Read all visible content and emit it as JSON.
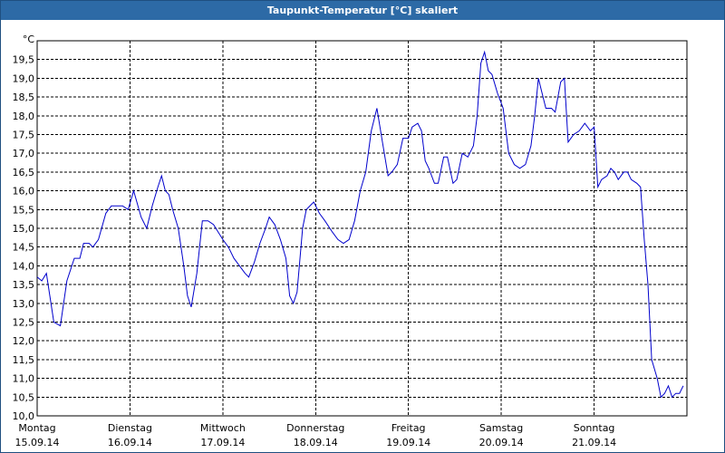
{
  "window": {
    "title": "Taupunkt-Temperatur [°C] skaliert"
  },
  "colors": {
    "line": "#0000cc",
    "grid": "#000000",
    "titlebar": "#2d6aa6"
  },
  "chart_data": {
    "type": "line",
    "title": "Taupunkt-Temperatur [°C] skaliert",
    "ylabel": "°C",
    "xlabel": "",
    "ylim": [
      10.0,
      20.0
    ],
    "xlim": [
      0,
      7.0
    ],
    "grid": true,
    "yticks": [
      "10,0",
      "10,5",
      "11,0",
      "11,5",
      "12,0",
      "12,5",
      "13,0",
      "13,5",
      "14,0",
      "14,5",
      "15,0",
      "15,5",
      "16,0",
      "16,5",
      "17,0",
      "17,5",
      "18,0",
      "18,5",
      "19,0",
      "19,5"
    ],
    "day_labels": [
      {
        "day": "Montag",
        "date": "15.09.14"
      },
      {
        "day": "Dienstag",
        "date": "16.09.14"
      },
      {
        "day": "Mittwoch",
        "date": "17.09.14"
      },
      {
        "day": "Donnerstag",
        "date": "18.09.14"
      },
      {
        "day": "Freitag",
        "date": "19.09.14"
      },
      {
        "day": "Samstag",
        "date": "20.09.14"
      },
      {
        "day": "Sonntag",
        "date": "21.09.14"
      }
    ],
    "series": [
      {
        "values": [
          [
            0.0,
            13.7
          ],
          [
            0.05,
            13.6
          ],
          [
            0.1,
            13.8
          ],
          [
            0.18,
            12.5
          ],
          [
            0.25,
            12.4
          ],
          [
            0.32,
            13.6
          ],
          [
            0.4,
            14.2
          ],
          [
            0.46,
            14.2
          ],
          [
            0.5,
            14.6
          ],
          [
            0.56,
            14.6
          ],
          [
            0.6,
            14.5
          ],
          [
            0.66,
            14.7
          ],
          [
            0.74,
            15.4
          ],
          [
            0.8,
            15.6
          ],
          [
            0.86,
            15.6
          ],
          [
            0.92,
            15.6
          ],
          [
            0.98,
            15.5
          ],
          [
            1.04,
            16.0
          ],
          [
            1.12,
            15.3
          ],
          [
            1.18,
            15.0
          ],
          [
            1.24,
            15.6
          ],
          [
            1.3,
            16.1
          ],
          [
            1.34,
            16.4
          ],
          [
            1.38,
            16.0
          ],
          [
            1.42,
            15.9
          ],
          [
            1.46,
            15.5
          ],
          [
            1.52,
            15.0
          ],
          [
            1.58,
            14.0
          ],
          [
            1.62,
            13.2
          ],
          [
            1.66,
            12.9
          ],
          [
            1.72,
            13.8
          ],
          [
            1.78,
            15.2
          ],
          [
            1.84,
            15.2
          ],
          [
            1.9,
            15.1
          ],
          [
            2.0,
            14.7
          ],
          [
            2.06,
            14.5
          ],
          [
            2.12,
            14.2
          ],
          [
            2.18,
            14.0
          ],
          [
            2.24,
            13.8
          ],
          [
            2.28,
            13.7
          ],
          [
            2.34,
            14.1
          ],
          [
            2.4,
            14.6
          ],
          [
            2.46,
            15.0
          ],
          [
            2.5,
            15.3
          ],
          [
            2.56,
            15.1
          ],
          [
            2.62,
            14.7
          ],
          [
            2.68,
            14.2
          ],
          [
            2.72,
            13.2
          ],
          [
            2.76,
            13.0
          ],
          [
            2.8,
            13.3
          ],
          [
            2.86,
            15.0
          ],
          [
            2.9,
            15.5
          ],
          [
            2.98,
            15.7
          ],
          [
            3.04,
            15.4
          ],
          [
            3.1,
            15.2
          ],
          [
            3.18,
            14.9
          ],
          [
            3.24,
            14.7
          ],
          [
            3.3,
            14.6
          ],
          [
            3.36,
            14.7
          ],
          [
            3.42,
            15.2
          ],
          [
            3.48,
            16.0
          ],
          [
            3.54,
            16.5
          ],
          [
            3.6,
            17.6
          ],
          [
            3.66,
            18.2
          ],
          [
            3.72,
            17.3
          ],
          [
            3.78,
            16.4
          ],
          [
            3.82,
            16.5
          ],
          [
            3.88,
            16.7
          ],
          [
            3.94,
            17.4
          ],
          [
            4.0,
            17.4
          ],
          [
            4.04,
            17.7
          ],
          [
            4.1,
            17.8
          ],
          [
            4.14,
            17.6
          ],
          [
            4.18,
            16.8
          ],
          [
            4.22,
            16.6
          ],
          [
            4.28,
            16.2
          ],
          [
            4.32,
            16.2
          ],
          [
            4.38,
            16.9
          ],
          [
            4.42,
            16.9
          ],
          [
            4.48,
            16.2
          ],
          [
            4.52,
            16.3
          ],
          [
            4.58,
            17.0
          ],
          [
            4.64,
            16.9
          ],
          [
            4.7,
            17.2
          ],
          [
            4.74,
            18.0
          ],
          [
            4.78,
            19.4
          ],
          [
            4.82,
            19.7
          ],
          [
            4.86,
            19.2
          ],
          [
            4.9,
            19.1
          ],
          [
            4.96,
            18.6
          ],
          [
            5.02,
            18.2
          ],
          [
            5.08,
            17.0
          ],
          [
            5.14,
            16.7
          ],
          [
            5.2,
            16.6
          ],
          [
            5.26,
            16.7
          ],
          [
            5.32,
            17.2
          ],
          [
            5.36,
            18.0
          ],
          [
            5.4,
            19.0
          ],
          [
            5.44,
            18.6
          ],
          [
            5.48,
            18.2
          ],
          [
            5.54,
            18.2
          ],
          [
            5.58,
            18.1
          ],
          [
            5.64,
            18.9
          ],
          [
            5.68,
            19.0
          ],
          [
            5.72,
            17.3
          ],
          [
            5.78,
            17.5
          ],
          [
            5.84,
            17.6
          ],
          [
            5.9,
            17.8
          ],
          [
            5.96,
            17.6
          ],
          [
            6.0,
            17.7
          ],
          [
            6.04,
            16.1
          ],
          [
            6.08,
            16.3
          ],
          [
            6.14,
            16.4
          ],
          [
            6.18,
            16.6
          ],
          [
            6.22,
            16.5
          ],
          [
            6.26,
            16.3
          ],
          [
            6.32,
            16.5
          ],
          [
            6.36,
            16.5
          ],
          [
            6.4,
            16.3
          ],
          [
            6.46,
            16.2
          ],
          [
            6.5,
            16.1
          ],
          [
            6.54,
            14.7
          ],
          [
            6.58,
            13.5
          ],
          [
            6.62,
            11.5
          ],
          [
            6.68,
            11.0
          ],
          [
            6.72,
            10.5
          ],
          [
            6.76,
            10.6
          ],
          [
            6.8,
            10.8
          ],
          [
            6.84,
            10.5
          ],
          [
            6.88,
            10.6
          ],
          [
            6.92,
            10.6
          ],
          [
            6.96,
            10.8
          ]
        ]
      }
    ]
  }
}
